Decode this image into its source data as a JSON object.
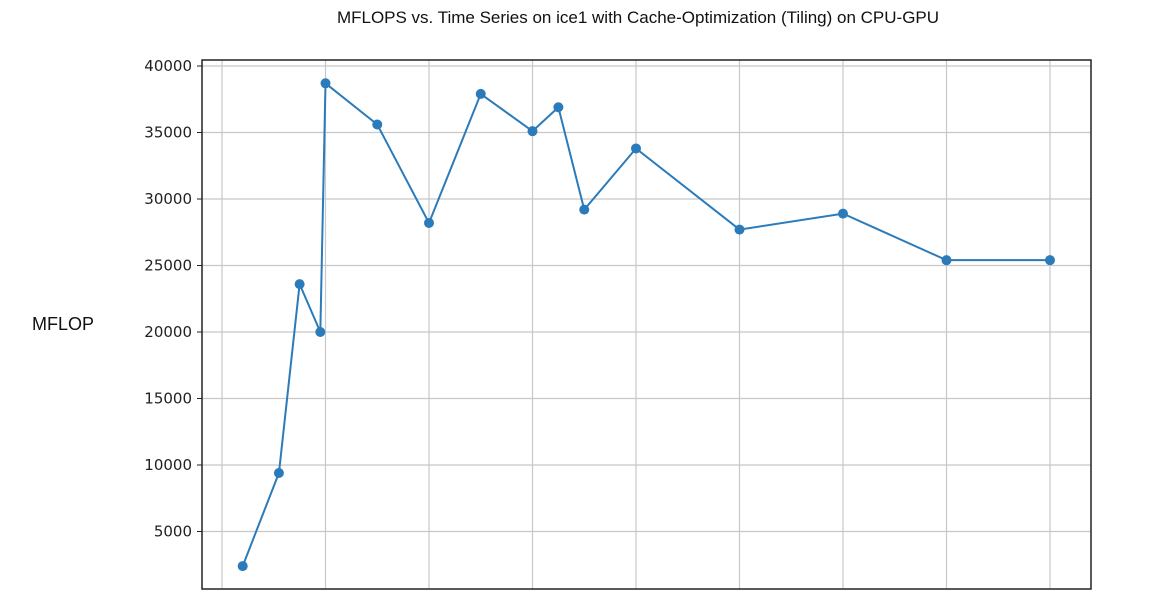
{
  "chart_data": {
    "type": "line",
    "title": "MFLOPS vs. Time Series on ice1 with Cache-Optimization (Tiling) on CPU-GPU",
    "xlabel": "",
    "ylabel": "MFLOP",
    "ylim": [
      0,
      40000
    ],
    "yticks": [
      5000,
      10000,
      15000,
      20000,
      25000,
      30000,
      35000,
      40000
    ],
    "grid": true,
    "color": "#2b7bba",
    "series": [
      {
        "x": [
          0.4,
          1.1,
          1.5,
          1.9,
          2.0,
          3.0,
          4.0,
          5.0,
          6.0,
          6.5,
          7.0,
          8.0,
          10.0,
          12.0,
          14.0,
          16.0
        ],
        "values": [
          2400,
          9400,
          23600,
          20000,
          38700,
          35600,
          28200,
          37900,
          35100,
          36900,
          29200,
          33800,
          27700,
          28900,
          25400,
          25400
        ]
      }
    ]
  }
}
